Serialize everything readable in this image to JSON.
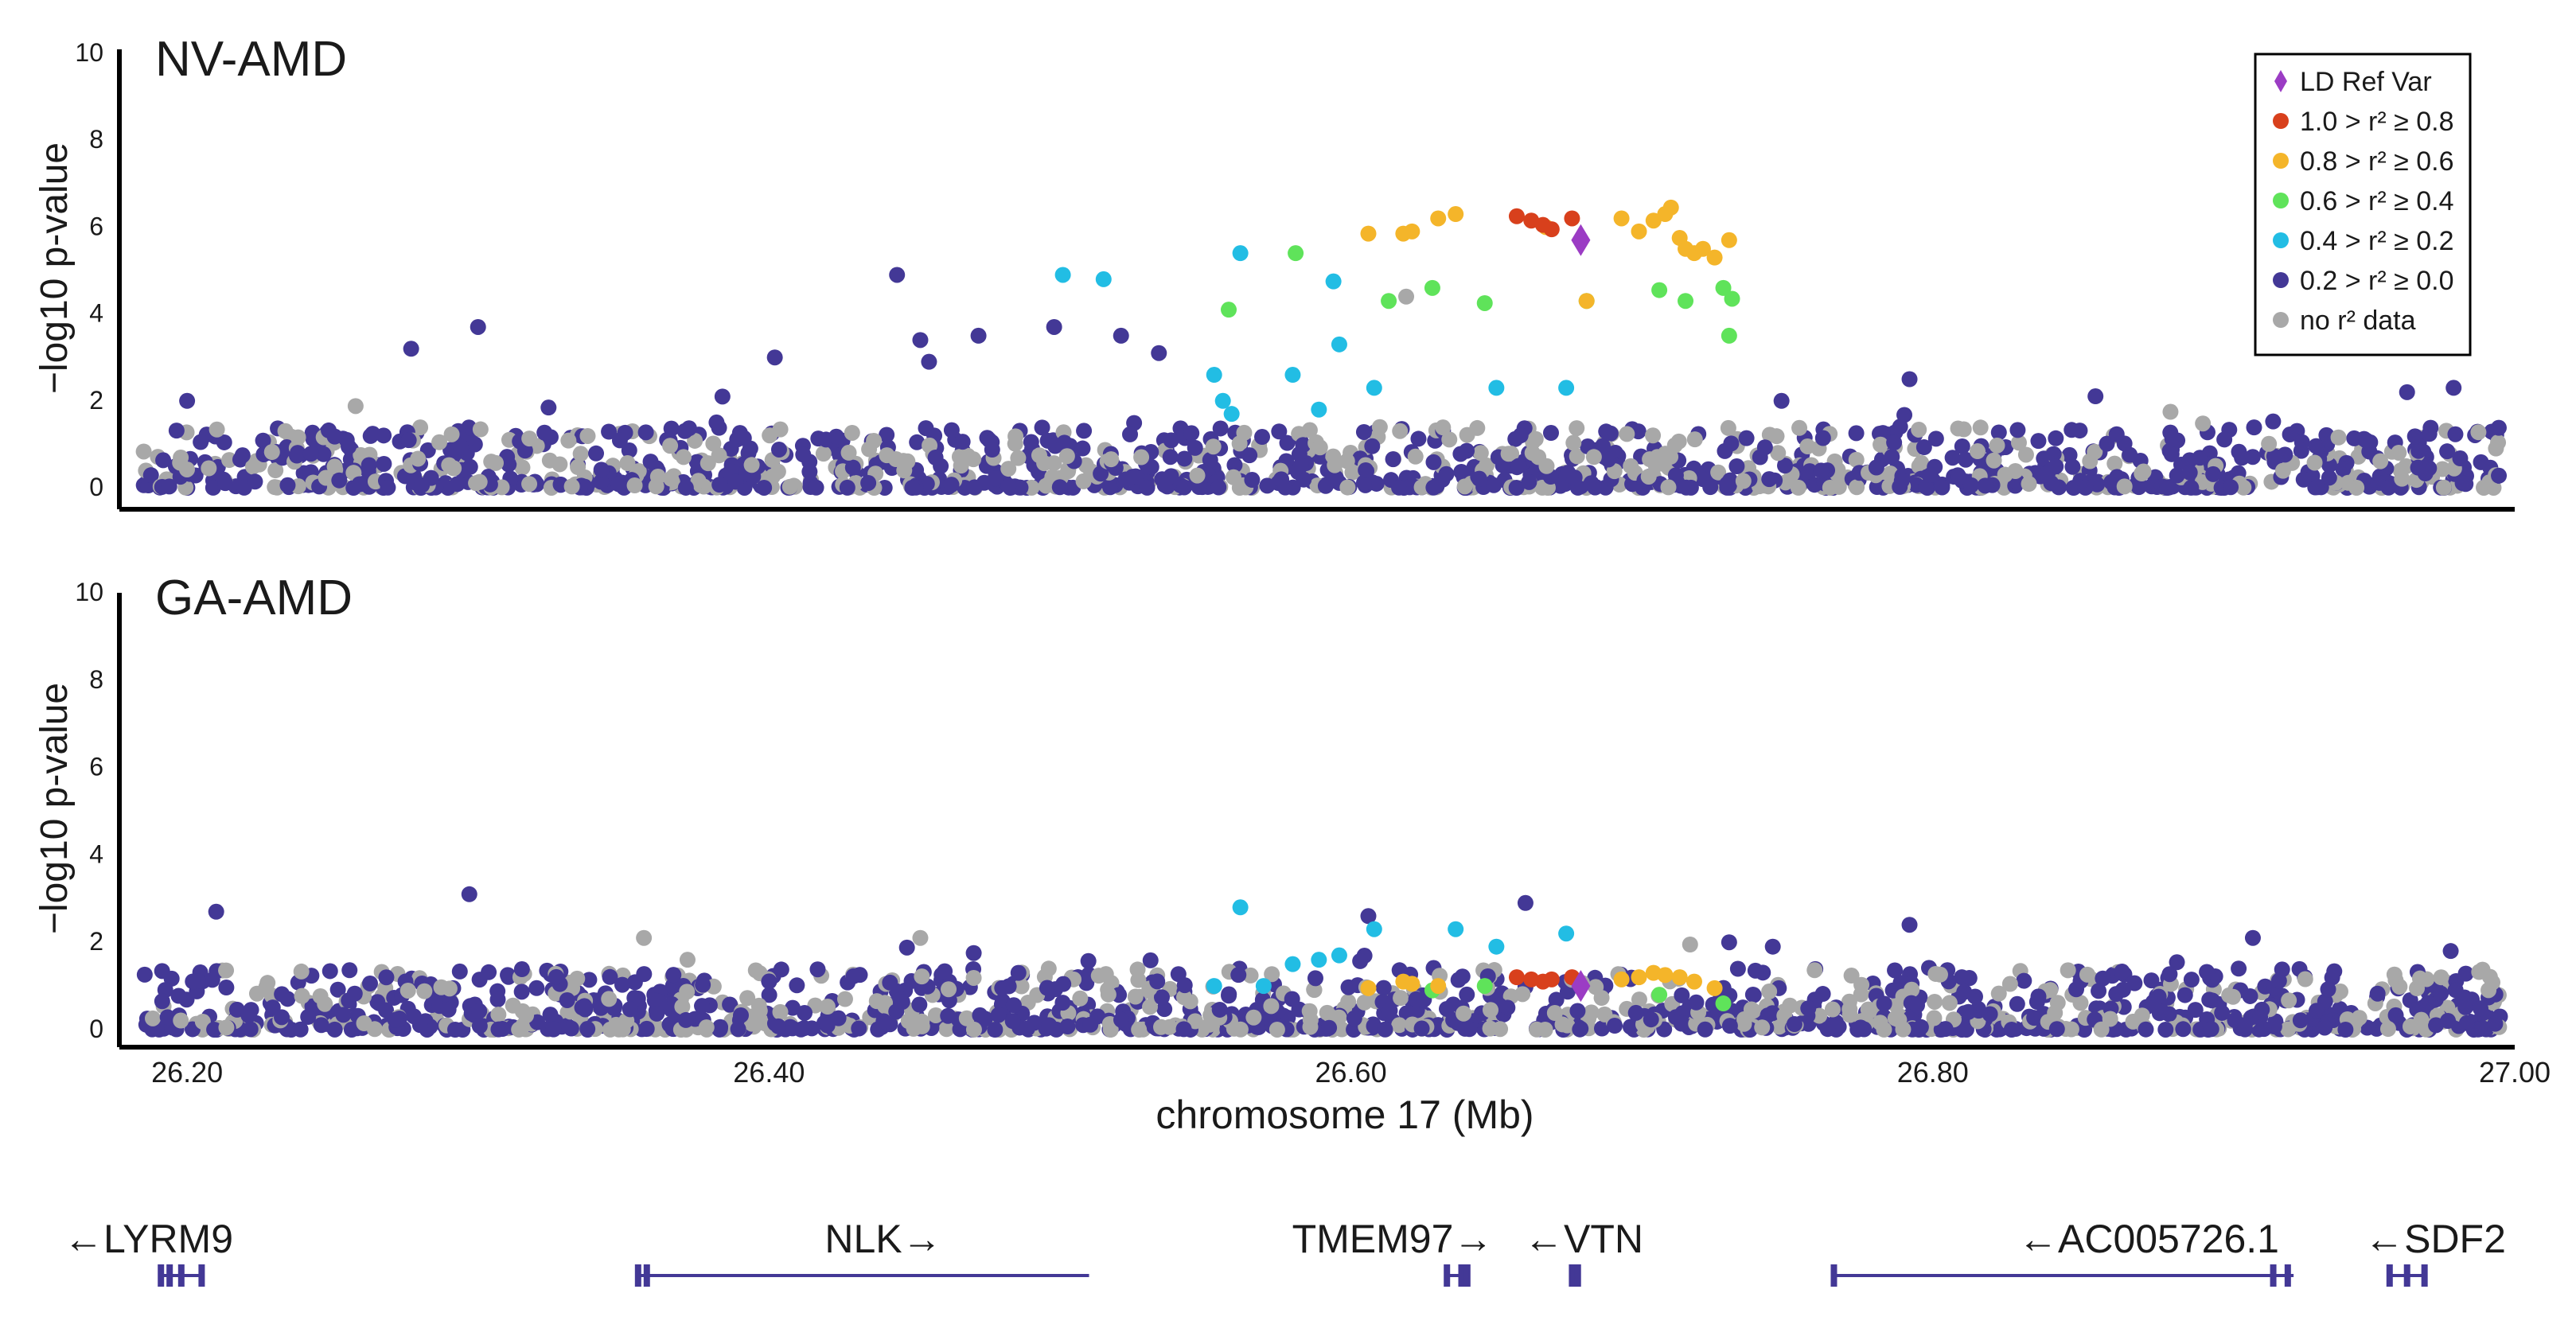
{
  "chart_data": {
    "type": "scatter",
    "x_axis": {
      "label": "chromosome 17 (Mb)",
      "range": [
        26.18,
        27.0
      ],
      "ticks": [
        26.2,
        26.4,
        26.6,
        26.8,
        27.0
      ],
      "tick_labels": [
        "26.20",
        "26.40",
        "26.60",
        "26.80",
        "27.00"
      ]
    },
    "legend": {
      "position": "top-right",
      "entries": [
        {
          "key": "ref",
          "label": "LD Ref Var",
          "color": "#9b3cc4",
          "shape": "diamond"
        },
        {
          "key": "r08",
          "label": "1.0 > r² ≥ 0.8",
          "color": "#d8401c",
          "shape": "circle"
        },
        {
          "key": "r06",
          "label": "0.8 > r² ≥ 0.6",
          "color": "#f4b52a",
          "shape": "circle"
        },
        {
          "key": "r04",
          "label": "0.6 > r² ≥ 0.4",
          "color": "#5fe35a",
          "shape": "circle"
        },
        {
          "key": "r02",
          "label": "0.4 > r² ≥ 0.2",
          "color": "#22bde4",
          "shape": "circle"
        },
        {
          "key": "r00",
          "label": "0.2 > r² ≥ 0.0",
          "color": "#433896",
          "shape": "circle"
        },
        {
          "key": "na",
          "label": "no r² data",
          "color": "#a8a8a8",
          "shape": "circle"
        }
      ]
    },
    "panels": [
      {
        "title": "NV-AMD",
        "ylabel": "−log10 p-value",
        "ylim": [
          0,
          10
        ],
        "yticks": [
          0,
          2,
          4,
          6,
          8,
          10
        ],
        "highlighted_points": {
          "ref": [
            [
              26.679,
              5.7
            ]
          ],
          "r08": [
            [
              26.657,
              6.25
            ],
            [
              26.662,
              6.15
            ],
            [
              26.666,
              6.05
            ],
            [
              26.669,
              5.95
            ],
            [
              26.676,
              6.2
            ]
          ],
          "r06": [
            [
              26.621,
              5.9
            ],
            [
              26.63,
              6.2
            ],
            [
              26.636,
              6.3
            ],
            [
              26.667,
              6.0
            ],
            [
              26.693,
              6.2
            ],
            [
              26.699,
              5.9
            ],
            [
              26.704,
              6.15
            ],
            [
              26.708,
              6.3
            ],
            [
              26.71,
              6.45
            ],
            [
              26.713,
              5.75
            ],
            [
              26.715,
              5.5
            ],
            [
              26.718,
              5.4
            ],
            [
              26.721,
              5.5
            ],
            [
              26.725,
              5.3
            ],
            [
              26.73,
              5.7
            ],
            [
              26.606,
              5.85
            ],
            [
              26.618,
              5.85
            ],
            [
              26.681,
              4.3
            ]
          ],
          "r04": [
            [
              26.558,
              4.1
            ],
            [
              26.581,
              5.4
            ],
            [
              26.613,
              4.3
            ],
            [
              26.628,
              4.6
            ],
            [
              26.646,
              4.25
            ],
            [
              26.681,
              4.3
            ],
            [
              26.706,
              4.55
            ],
            [
              26.715,
              4.3
            ],
            [
              26.728,
              4.6
            ],
            [
              26.731,
              4.35
            ],
            [
              26.73,
              3.5
            ]
          ],
          "r02": [
            [
              26.501,
              4.9
            ],
            [
              26.515,
              4.8
            ],
            [
              26.553,
              2.6
            ],
            [
              26.556,
              2.0
            ],
            [
              26.559,
              1.7
            ],
            [
              26.562,
              5.4
            ],
            [
              26.594,
              4.75
            ],
            [
              26.596,
              3.3
            ],
            [
              26.608,
              2.3
            ],
            [
              26.65,
              2.3
            ],
            [
              26.674,
              2.3
            ],
            [
              26.589,
              1.8
            ],
            [
              26.58,
              2.6
            ]
          ],
          "na": [
            [
              26.619,
              4.4
            ]
          ]
        },
        "notable_purple_points": [
          [
            26.444,
            4.9
          ],
          [
            26.402,
            3.0
          ],
          [
            26.384,
            2.1
          ],
          [
            26.498,
            3.7
          ],
          [
            26.521,
            3.5
          ],
          [
            26.534,
            3.1
          ],
          [
            26.472,
            3.5
          ],
          [
            26.3,
            3.7
          ],
          [
            26.277,
            3.2
          ],
          [
            26.452,
            3.4
          ],
          [
            26.455,
            2.9
          ],
          [
            26.792,
            2.5
          ],
          [
            26.748,
            2.0
          ],
          [
            26.963,
            2.2
          ],
          [
            26.979,
            2.3
          ],
          [
            26.2,
            2.0
          ]
        ]
      },
      {
        "title": "GA-AMD",
        "ylabel": "−log10 p-value",
        "ylim": [
          0,
          10
        ],
        "yticks": [
          0,
          2,
          4,
          6,
          8,
          10
        ],
        "highlighted_points": {
          "ref": [
            [
              26.679,
              1.0
            ]
          ],
          "r08": [
            [
              26.657,
              1.2
            ],
            [
              26.662,
              1.15
            ],
            [
              26.666,
              1.1
            ],
            [
              26.669,
              1.15
            ],
            [
              26.676,
              1.2
            ]
          ],
          "r06": [
            [
              26.606,
              0.95
            ],
            [
              26.618,
              1.1
            ],
            [
              26.621,
              1.05
            ],
            [
              26.63,
              1.0
            ],
            [
              26.693,
              1.15
            ],
            [
              26.699,
              1.2
            ],
            [
              26.704,
              1.3
            ],
            [
              26.708,
              1.25
            ],
            [
              26.713,
              1.2
            ],
            [
              26.718,
              1.1
            ],
            [
              26.725,
              0.95
            ]
          ],
          "r04": [
            [
              26.628,
              0.9
            ],
            [
              26.646,
              1.0
            ],
            [
              26.706,
              0.8
            ],
            [
              26.728,
              0.6
            ]
          ],
          "r02": [
            [
              26.562,
              2.8
            ],
            [
              26.589,
              1.6
            ],
            [
              26.596,
              1.7
            ],
            [
              26.608,
              2.3
            ],
            [
              26.636,
              2.3
            ],
            [
              26.65,
              1.9
            ],
            [
              26.674,
              2.2
            ],
            [
              26.58,
              1.5
            ],
            [
              26.553,
              1.0
            ],
            [
              26.57,
              1.0
            ]
          ],
          "na": [
            [
              26.357,
              2.1
            ],
            [
              26.372,
              1.6
            ],
            [
              26.452,
              2.1
            ]
          ]
        },
        "notable_purple_points": [
          [
            26.297,
            3.1
          ],
          [
            26.21,
            2.7
          ],
          [
            26.606,
            2.6
          ],
          [
            26.66,
            2.9
          ],
          [
            26.792,
            2.4
          ],
          [
            26.91,
            2.1
          ],
          [
            26.978,
            1.8
          ],
          [
            26.73,
            2.0
          ],
          [
            26.745,
            1.9
          ]
        ]
      }
    ],
    "genes": [
      {
        "name": "←LYRM9",
        "start": 26.19,
        "end": 26.205,
        "exons": [
          26.191,
          26.194,
          26.198,
          26.205
        ]
      },
      {
        "name": "NLK→",
        "start": 26.355,
        "end": 26.51,
        "exons": [
          26.355,
          26.358
        ]
      },
      {
        "name": "TMEM97→",
        "start": 26.632,
        "end": 26.641,
        "exons": [
          26.633,
          26.638,
          26.64
        ]
      },
      {
        "name": "←VTN",
        "start": 26.675,
        "end": 26.679,
        "exons": [
          26.676,
          26.678
        ]
      },
      {
        "name": "←AC005726.1",
        "start": 26.766,
        "end": 26.924,
        "exons": [
          26.766,
          26.917,
          26.922
        ]
      },
      {
        "name": "←SDF2",
        "start": 26.957,
        "end": 26.97,
        "exons": [
          26.957,
          26.963,
          26.969
        ]
      }
    ]
  }
}
